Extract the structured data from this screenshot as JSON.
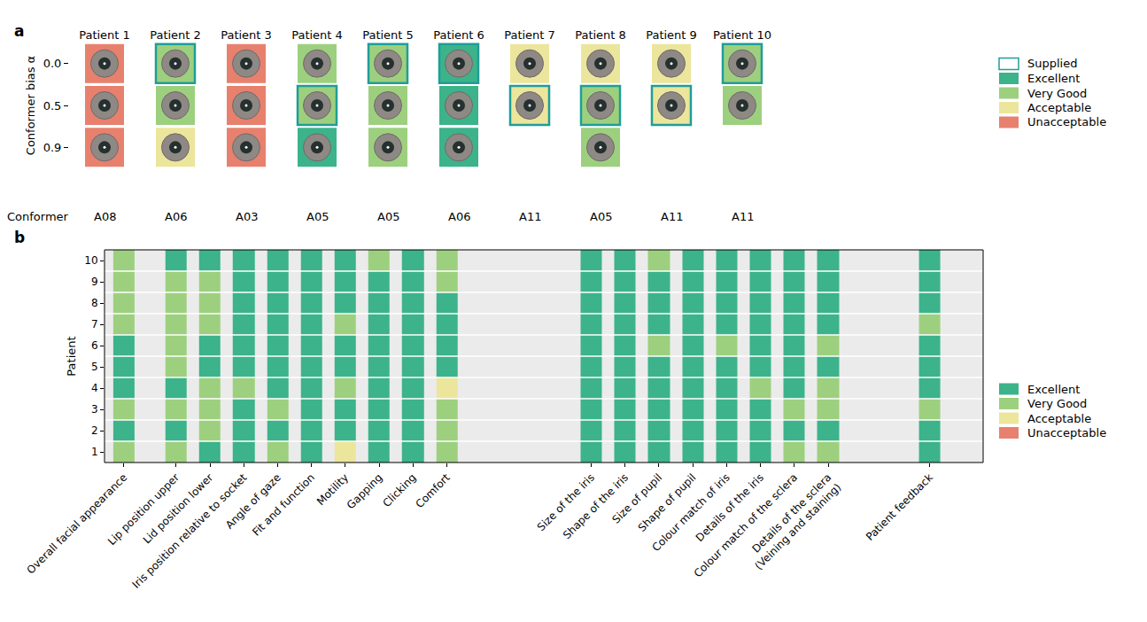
{
  "chart_data": [
    {
      "panel": "a",
      "type": "image_grid",
      "categories": [
        "Patient 1",
        "Patient 2",
        "Patient 3",
        "Patient 4",
        "Patient 5",
        "Patient 6",
        "Patient 7",
        "Patient 8",
        "Patient 9",
        "Patient 10"
      ],
      "rows": [
        "0.0",
        "0.5",
        "0.9"
      ],
      "ylabel": "Conformer bias α",
      "row_label": "Conformer",
      "conformers": [
        "A08",
        "A06",
        "A03",
        "A05",
        "A05",
        "A06",
        "A11",
        "A05",
        "A11",
        "A11"
      ],
      "ratings": [
        [
          "Unacceptable",
          "Unacceptable",
          "Unacceptable"
        ],
        [
          "Very Good",
          "Very Good",
          "Acceptable"
        ],
        [
          "Unacceptable",
          "Unacceptable",
          "Unacceptable"
        ],
        [
          "Very Good",
          "Very Good",
          "Excellent"
        ],
        [
          "Very Good",
          "Very Good",
          "Very Good"
        ],
        [
          "Excellent",
          "Excellent",
          "Excellent"
        ],
        [
          "Acceptable",
          "Acceptable",
          null
        ],
        [
          "Acceptable",
          "Very Good",
          "Very Good"
        ],
        [
          "Acceptable",
          "Acceptable",
          null
        ],
        [
          "Very Good",
          "Very Good",
          null
        ]
      ],
      "supplied": [
        null,
        "0.0",
        null,
        "0.5",
        "0.0",
        "0.0",
        "0.5",
        "0.5",
        "0.5",
        "0.0"
      ],
      "legend": "right",
      "legend_items": [
        {
          "name": "Supplied",
          "color": "#1f9e98",
          "marker": "outline"
        },
        {
          "name": "Excellent",
          "color": "#3cb38a"
        },
        {
          "name": "Very Good",
          "color": "#9dd07e"
        },
        {
          "name": "Acceptable",
          "color": "#ece59c"
        },
        {
          "name": "Unacceptable",
          "color": "#e8806e"
        }
      ]
    },
    {
      "panel": "b",
      "type": "heatmap",
      "ylabel": "Patient",
      "y": [
        1,
        2,
        3,
        4,
        5,
        6,
        7,
        8,
        9,
        10
      ],
      "ylim": [
        0.5,
        10.5
      ],
      "yticks": [
        1,
        2,
        3,
        4,
        5,
        6,
        7,
        8,
        9,
        10
      ],
      "groups": [
        [
          {
            "name": "Overall facial appearance",
            "ratings": [
              "Very Good",
              "Excellent",
              "Very Good",
              "Excellent",
              "Excellent",
              "Excellent",
              "Very Good",
              "Very Good",
              "Very Good",
              "Very Good"
            ]
          }
        ],
        [
          {
            "name": "Lip position upper",
            "ratings": [
              "Very Good",
              "Excellent",
              "Very Good",
              "Excellent",
              "Very Good",
              "Very Good",
              "Very Good",
              "Very Good",
              "Very Good",
              "Excellent"
            ]
          },
          {
            "name": "Lid position lower",
            "ratings": [
              "Excellent",
              "Very Good",
              "Very Good",
              "Very Good",
              "Excellent",
              "Excellent",
              "Very Good",
              "Very Good",
              "Very Good",
              "Excellent"
            ]
          },
          {
            "name": "Iris position relative to socket",
            "ratings": [
              "Excellent",
              "Excellent",
              "Excellent",
              "Very Good",
              "Excellent",
              "Excellent",
              "Excellent",
              "Excellent",
              "Excellent",
              "Excellent"
            ]
          },
          {
            "name": "Angle of gaze",
            "ratings": [
              "Very Good",
              "Excellent",
              "Very Good",
              "Excellent",
              "Excellent",
              "Excellent",
              "Excellent",
              "Excellent",
              "Excellent",
              "Excellent"
            ]
          },
          {
            "name": "Fit and function",
            "ratings": [
              "Excellent",
              "Excellent",
              "Excellent",
              "Excellent",
              "Excellent",
              "Excellent",
              "Excellent",
              "Excellent",
              "Excellent",
              "Excellent"
            ]
          },
          {
            "name": "Motility",
            "ratings": [
              "Acceptable",
              "Excellent",
              "Excellent",
              "Very Good",
              "Excellent",
              "Excellent",
              "Very Good",
              "Excellent",
              "Excellent",
              "Excellent"
            ]
          },
          {
            "name": "Gapping",
            "ratings": [
              "Excellent",
              "Excellent",
              "Excellent",
              "Excellent",
              "Excellent",
              "Excellent",
              "Excellent",
              "Excellent",
              "Excellent",
              "Very Good"
            ]
          },
          {
            "name": "Clicking",
            "ratings": [
              "Excellent",
              "Excellent",
              "Excellent",
              "Excellent",
              "Excellent",
              "Excellent",
              "Excellent",
              "Excellent",
              "Excellent",
              "Excellent"
            ]
          },
          {
            "name": "Comfort",
            "ratings": [
              "Very Good",
              "Very Good",
              "Very Good",
              "Acceptable",
              "Excellent",
              "Excellent",
              "Excellent",
              "Excellent",
              "Very Good",
              "Very Good"
            ]
          }
        ],
        [
          {
            "name": "Size of the iris",
            "ratings": [
              "Excellent",
              "Excellent",
              "Excellent",
              "Excellent",
              "Excellent",
              "Excellent",
              "Excellent",
              "Excellent",
              "Excellent",
              "Excellent"
            ]
          },
          {
            "name": "Shape of the iris",
            "ratings": [
              "Excellent",
              "Excellent",
              "Excellent",
              "Excellent",
              "Excellent",
              "Excellent",
              "Excellent",
              "Excellent",
              "Excellent",
              "Excellent"
            ]
          },
          {
            "name": "Size of pupil",
            "ratings": [
              "Excellent",
              "Excellent",
              "Excellent",
              "Excellent",
              "Excellent",
              "Very Good",
              "Excellent",
              "Excellent",
              "Excellent",
              "Very Good"
            ]
          },
          {
            "name": "Shape of pupil",
            "ratings": [
              "Excellent",
              "Excellent",
              "Excellent",
              "Excellent",
              "Excellent",
              "Excellent",
              "Excellent",
              "Excellent",
              "Excellent",
              "Excellent"
            ]
          },
          {
            "name": "Colour match of iris",
            "ratings": [
              "Excellent",
              "Excellent",
              "Excellent",
              "Excellent",
              "Excellent",
              "Very Good",
              "Excellent",
              "Excellent",
              "Excellent",
              "Excellent"
            ]
          },
          {
            "name": "Details of the iris",
            "ratings": [
              "Excellent",
              "Excellent",
              "Excellent",
              "Very Good",
              "Excellent",
              "Excellent",
              "Excellent",
              "Excellent",
              "Excellent",
              "Excellent"
            ]
          },
          {
            "name": "Colour match of the sclera",
            "ratings": [
              "Very Good",
              "Excellent",
              "Very Good",
              "Excellent",
              "Excellent",
              "Excellent",
              "Excellent",
              "Excellent",
              "Excellent",
              "Excellent"
            ]
          },
          {
            "name": "Details of the sclera\n(Veining and staining)",
            "ratings": [
              "Very Good",
              "Excellent",
              "Very Good",
              "Very Good",
              "Excellent",
              "Very Good",
              "Excellent",
              "Excellent",
              "Excellent",
              "Excellent"
            ]
          }
        ],
        [
          {
            "name": "Patient feedback",
            "ratings": [
              "Excellent",
              "Excellent",
              "Very Good",
              "Excellent",
              "Excellent",
              "Excellent",
              "Very Good",
              "Excellent",
              "Excellent",
              "Excellent"
            ]
          }
        ]
      ],
      "legend": "right",
      "legend_items": [
        {
          "name": "Excellent",
          "color": "#3cb38a"
        },
        {
          "name": "Very Good",
          "color": "#9dd07e"
        },
        {
          "name": "Acceptable",
          "color": "#ece59c"
        },
        {
          "name": "Unacceptable",
          "color": "#e8806e"
        }
      ]
    }
  ]
}
